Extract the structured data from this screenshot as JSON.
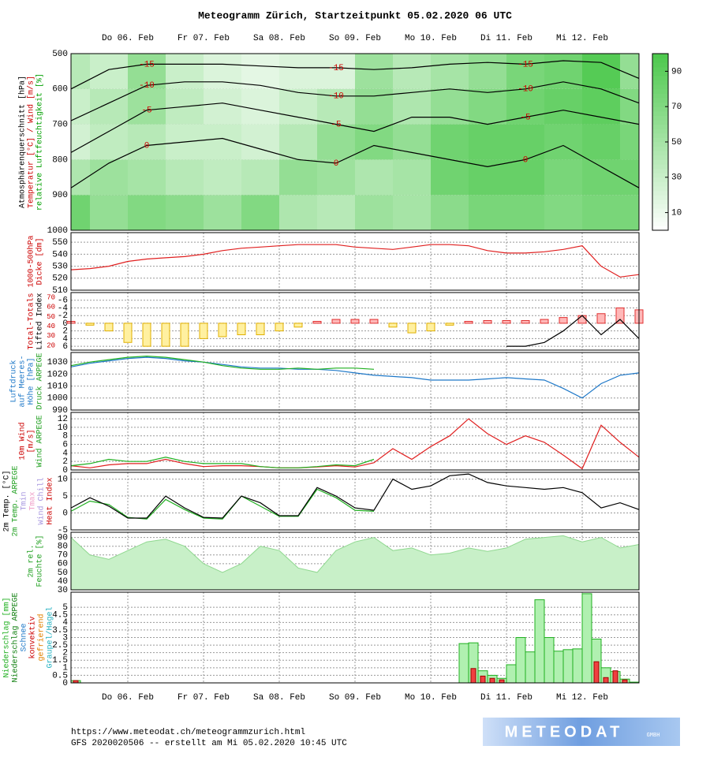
{
  "title": "Meteogramm Zürich, Startzeitpunkt 05.02.2020 06 UTC",
  "time_axis": {
    "xlim": [
      0,
      180
    ],
    "xticks": [
      {
        "value": 18,
        "label": "Do 06. Feb"
      },
      {
        "value": 42,
        "label": "Fr 07. Feb"
      },
      {
        "value": 66,
        "label": "Sa 08. Feb"
      },
      {
        "value": 90,
        "label": "So 09. Feb"
      },
      {
        "value": 114,
        "label": "Mo 10. Feb"
      },
      {
        "value": 138,
        "label": "Di 11. Feb"
      },
      {
        "value": 162,
        "label": "Mi 12. Feb"
      }
    ]
  },
  "footer": {
    "url": "https://www.meteodat.ch/meteogrammzurich.html",
    "info": "GFS 2020020506 -- erstellt am Mi 05.02.2020 10:45 UTC"
  },
  "logo": {
    "text": "METEODAT",
    "sub": "GMBH"
  },
  "chart_data": [
    {
      "type": "heatmap",
      "ylabels": [
        {
          "text": "Atmosphärenquerschnitt [hPa]",
          "color": "#000000"
        },
        {
          "text": "Temperatur [°C] / Wind [m/s]",
          "color": "#cc0000"
        },
        {
          "text": "relative Luftfeuchtigkeit [%]",
          "color": "#00a000"
        }
      ],
      "ylim": [
        1000,
        500
      ],
      "yticks": [
        500,
        600,
        700,
        800,
        900,
        1000
      ],
      "x": [
        0,
        12,
        24,
        36,
        48,
        60,
        72,
        84,
        96,
        108,
        120,
        132,
        144,
        156,
        168,
        180
      ],
      "levels": [
        950,
        850,
        750,
        650,
        550
      ],
      "humidity": [
        [
          80,
          60,
          70,
          65,
          55,
          70,
          45,
          40,
          55,
          50,
          65,
          75,
          75,
          70,
          75,
          75
        ],
        [
          45,
          55,
          50,
          40,
          35,
          40,
          60,
          55,
          45,
          50,
          80,
          85,
          85,
          75,
          80,
          80
        ],
        [
          25,
          35,
          40,
          30,
          30,
          25,
          40,
          60,
          70,
          60,
          80,
          85,
          85,
          80,
          85,
          75
        ],
        [
          30,
          40,
          55,
          35,
          25,
          20,
          30,
          40,
          60,
          45,
          60,
          70,
          80,
          85,
          90,
          70
        ],
        [
          40,
          30,
          60,
          30,
          20,
          15,
          20,
          20,
          55,
          40,
          50,
          60,
          75,
          80,
          95,
          60
        ]
      ],
      "colorbar": {
        "lim": [
          0,
          100
        ],
        "ticks": [
          10,
          30,
          50,
          70,
          90
        ],
        "low": "#ffffff",
        "high": "#4cc84c"
      },
      "label_color": "#d00000",
      "line_color": "#000000",
      "isotherms": [
        {
          "label": "-15",
          "values": [
            600,
            545,
            530,
            530,
            530,
            535,
            540,
            540,
            545,
            540,
            530,
            525,
            530,
            520,
            525,
            570
          ]
        },
        {
          "label": "-10",
          "values": [
            690,
            640,
            590,
            580,
            580,
            590,
            610,
            620,
            620,
            610,
            600,
            610,
            600,
            580,
            600,
            640
          ]
        },
        {
          "label": "-5",
          "values": [
            780,
            720,
            660,
            650,
            640,
            660,
            680,
            700,
            720,
            680,
            680,
            700,
            680,
            660,
            680,
            700
          ]
        },
        {
          "label": "0",
          "values": [
            880,
            810,
            760,
            750,
            740,
            770,
            800,
            810,
            760,
            780,
            800,
            820,
            800,
            760,
            820,
            880
          ]
        }
      ]
    },
    {
      "type": "line",
      "ylabels": [
        {
          "text": "1000-500hPa",
          "color": "#cc0000"
        },
        {
          "text": "Dicke [dm]",
          "color": "#cc0000"
        }
      ],
      "ylim": [
        510,
        558
      ],
      "yticks": [
        510,
        520,
        530,
        540,
        550
      ],
      "x": [
        0,
        6,
        12,
        18,
        24,
        30,
        36,
        42,
        48,
        54,
        60,
        66,
        72,
        78,
        84,
        90,
        96,
        102,
        108,
        114,
        120,
        126,
        132,
        138,
        144,
        150,
        156,
        162,
        168,
        174,
        180
      ],
      "series": [
        {
          "color": "#e02020",
          "values": [
            527,
            528,
            530,
            534,
            536,
            537,
            538,
            540,
            543,
            545,
            546,
            547,
            548,
            548,
            548,
            546,
            545,
            544,
            546,
            548,
            548,
            547,
            543,
            541,
            541,
            542,
            544,
            547,
            530,
            521,
            523
          ]
        }
      ]
    },
    {
      "type": "bar",
      "ylabels": [
        {
          "text": "Total-Totals",
          "color": "#cc0000"
        },
        {
          "text": "Lifted Index",
          "color": "#000000"
        }
      ],
      "ylim": [
        7,
        -8
      ],
      "yticks": [
        -6,
        -4,
        -2,
        0,
        2,
        4,
        6
      ],
      "y2lim": [
        15,
        75
      ],
      "y2ticks": [
        20,
        30,
        40,
        50,
        60,
        70
      ],
      "y2color": "#cc0000",
      "x": [
        0,
        6,
        12,
        18,
        24,
        30,
        36,
        42,
        48,
        54,
        60,
        66,
        72,
        78,
        84,
        90,
        96,
        102,
        108,
        114,
        120,
        126,
        132,
        138,
        144,
        150,
        156,
        162,
        168,
        174,
        180
      ],
      "values": [
        -0.5,
        0.5,
        2,
        5,
        6,
        6,
        6,
        4,
        3.5,
        3,
        3,
        2,
        1,
        -0.5,
        -1,
        -1,
        -1,
        1,
        2.5,
        2,
        0.5,
        -0.5,
        -0.7,
        -0.7,
        -0.7,
        -1,
        -1.5,
        -2,
        -2.5,
        -4,
        -3.5
      ],
      "colors": {
        "positive": "#fff0a0",
        "negative": "#ffb8b8"
      },
      "edges": {
        "positive": "#e0b000",
        "negative": "#e03030"
      },
      "series": [
        {
          "color": "#000000",
          "values": [
            null,
            null,
            null,
            null,
            null,
            null,
            null,
            null,
            null,
            null,
            null,
            null,
            null,
            null,
            null,
            null,
            null,
            null,
            null,
            null,
            null,
            null,
            null,
            6,
            6,
            5,
            2,
            -2,
            3,
            -1,
            4
          ]
        }
      ]
    },
    {
      "type": "line",
      "ylabels": [
        {
          "text": "Luftdruck",
          "color": "#1e78c8"
        },
        {
          "text": "auf Meeres-",
          "color": "#1e78c8"
        },
        {
          "text": "Höhe [hPa]",
          "color": "#1e78c8"
        },
        {
          "text": "Druck ARPEGE",
          "color": "#20a020"
        }
      ],
      "ylim": [
        990,
        1038
      ],
      "yticks": [
        990,
        1000,
        1010,
        1020,
        1030
      ],
      "x": [
        0,
        6,
        12,
        18,
        24,
        30,
        36,
        42,
        48,
        54,
        60,
        66,
        72,
        78,
        84,
        90,
        96,
        102,
        108,
        114,
        120,
        126,
        132,
        138,
        144,
        150,
        156,
        162,
        168,
        174,
        180
      ],
      "series": [
        {
          "color": "#1e78c8",
          "values": [
            1026,
            1029,
            1031,
            1033,
            1034,
            1033,
            1031,
            1030,
            1028,
            1026,
            1025,
            1025,
            1024,
            1024,
            1023,
            1021,
            1019,
            1018,
            1017,
            1015,
            1015,
            1015,
            1016,
            1017,
            1016,
            1015,
            1008,
            1000,
            1012,
            1019,
            1021
          ]
        },
        {
          "color": "#20b020",
          "values": [
            1027,
            1030,
            1032,
            1034,
            1035,
            1034,
            1032,
            1030,
            1027,
            1025,
            1024,
            1024,
            1025,
            1024,
            1025,
            1025,
            1024,
            null,
            null,
            null,
            null,
            null,
            null,
            null,
            null,
            null,
            null,
            null,
            null,
            null,
            null
          ]
        }
      ]
    },
    {
      "type": "line",
      "ylabels": [
        {
          "text": "10m Wind",
          "color": "#cc0000"
        },
        {
          "text": "[m/s]",
          "color": "#cc0000"
        },
        {
          "text": "Wind ARPEGE",
          "color": "#20a020"
        }
      ],
      "ylim": [
        0,
        13.5
      ],
      "yticks": [
        0,
        2,
        4,
        6,
        8,
        10,
        12
      ],
      "x": [
        0,
        6,
        12,
        18,
        24,
        30,
        36,
        42,
        48,
        54,
        60,
        66,
        72,
        78,
        84,
        90,
        96,
        102,
        108,
        114,
        120,
        126,
        132,
        138,
        144,
        150,
        156,
        162,
        168,
        174,
        180
      ],
      "series": [
        {
          "color": "#e02020",
          "values": [
            1,
            0.5,
            1.2,
            1.5,
            1.5,
            2.5,
            1.5,
            0.8,
            1,
            1,
            0.8,
            0.5,
            0.5,
            0.7,
            1,
            0.7,
            1.7,
            5,
            2.5,
            5.5,
            8,
            12,
            8.5,
            6,
            8,
            6.5,
            3.5,
            0.3,
            10.5,
            6.5,
            3
          ]
        },
        {
          "color": "#20b020",
          "values": [
            1,
            1.5,
            2.5,
            2,
            2,
            3,
            2,
            1.5,
            1.5,
            1.5,
            0.8,
            0.5,
            0.5,
            0.8,
            1.2,
            1,
            2.5,
            null,
            null,
            null,
            null,
            null,
            null,
            null,
            null,
            null,
            null,
            null,
            null,
            null,
            null
          ]
        }
      ]
    },
    {
      "type": "line",
      "ylabels": [
        {
          "text": "2m Temp. [°C]",
          "color": "#000000"
        },
        {
          "text": "2m Temp. ARPEGE",
          "color": "#20a020"
        },
        {
          "text": "Tmin",
          "color": "#a898e0"
        },
        {
          "text": "Tmax",
          "color": "#f0a0c8"
        },
        {
          "text": "Wind Chill",
          "color": "#a898e0"
        },
        {
          "text": "Heat Index",
          "color": "#cc0000"
        }
      ],
      "ylim": [
        -5,
        12
      ],
      "yticks": [
        -5,
        0,
        5,
        10
      ],
      "x": [
        0,
        6,
        12,
        18,
        24,
        30,
        36,
        42,
        48,
        54,
        60,
        66,
        72,
        78,
        84,
        90,
        96,
        102,
        108,
        114,
        120,
        126,
        132,
        138,
        144,
        150,
        156,
        162,
        168,
        174,
        180
      ],
      "series": [
        {
          "color": "#20b020",
          "values": [
            0.5,
            3.5,
            2.5,
            -1.3,
            -1.8,
            4,
            1,
            -1.5,
            -1.8,
            5,
            2,
            -1,
            -1,
            7,
            4.5,
            0.8,
            0.5,
            null,
            null,
            null,
            null,
            null,
            null,
            null,
            null,
            null,
            null,
            null,
            null,
            null,
            null
          ]
        },
        {
          "color": "#000000",
          "values": [
            1.5,
            4.5,
            2,
            -1.5,
            -1.5,
            5,
            1.5,
            -1.3,
            -1.5,
            5,
            3,
            -0.8,
            -0.8,
            7.5,
            5,
            1.5,
            0.8,
            10,
            7,
            8,
            11,
            11.5,
            9,
            8,
            7.5,
            7,
            7.5,
            6,
            1.5,
            3,
            1
          ]
        }
      ]
    },
    {
      "type": "area",
      "ylabels": [
        {
          "text": "2m rel.",
          "color": "#20a020"
        },
        {
          "text": "Feuchte [%]",
          "color": "#20a020"
        }
      ],
      "ylim": [
        30,
        96
      ],
      "yticks": [
        30,
        40,
        50,
        60,
        70,
        80,
        90
      ],
      "x": [
        0,
        6,
        12,
        18,
        24,
        30,
        36,
        42,
        48,
        54,
        60,
        66,
        72,
        78,
        84,
        90,
        96,
        102,
        108,
        114,
        120,
        126,
        132,
        138,
        144,
        150,
        156,
        162,
        168,
        174,
        180
      ],
      "fill": "#c8f0c8",
      "series": [
        {
          "color": "#90d890",
          "values": [
            90,
            70,
            65,
            75,
            85,
            88,
            80,
            60,
            50,
            60,
            80,
            75,
            55,
            50,
            75,
            85,
            90,
            75,
            78,
            70,
            72,
            78,
            74,
            78,
            88,
            90,
            92,
            85,
            90,
            78,
            82
          ]
        }
      ]
    },
    {
      "type": "column",
      "ylabels": [
        {
          "text": "Niederschlag [mm]",
          "color": "#20b020"
        },
        {
          "text": "Niederschlag ARPEGE",
          "color": "#108010"
        },
        {
          "text": "Schnee",
          "color": "#1e78c8"
        },
        {
          "text": "konvektiv",
          "color": "#cc0000"
        },
        {
          "text": "gefrierend",
          "color": "#e08000"
        },
        {
          "text": "Graupel/Hagel",
          "color": "#20b0c0"
        }
      ],
      "ylim": [
        0,
        6
      ],
      "yticks": [
        0,
        0.5,
        1,
        1.5,
        2,
        2.5,
        3,
        3.5,
        4,
        4.5,
        5
      ],
      "x": [
        0,
        123,
        126,
        129,
        132,
        135,
        138,
        141,
        144,
        147,
        150,
        153,
        156,
        159,
        162,
        165,
        168,
        171,
        174,
        177
      ],
      "width": 3,
      "series": [
        {
          "color": "#b0f0b0",
          "edge": "#20b020",
          "values": [
            0.15,
            2.6,
            2.65,
            0.8,
            0.5,
            0.3,
            1.2,
            3,
            2.05,
            5.5,
            3,
            2.1,
            2.2,
            2.25,
            5.9,
            2.9,
            1,
            0.75,
            0.25,
            0.05
          ]
        },
        {
          "color": "#f04040",
          "edge": "#a00000",
          "values": [
            0.15,
            0,
            0.95,
            0.45,
            0.3,
            0.2,
            0,
            0,
            0,
            0,
            0,
            0,
            0,
            0,
            0,
            1.4,
            0.35,
            0.8,
            0.2,
            0
          ]
        }
      ]
    }
  ]
}
